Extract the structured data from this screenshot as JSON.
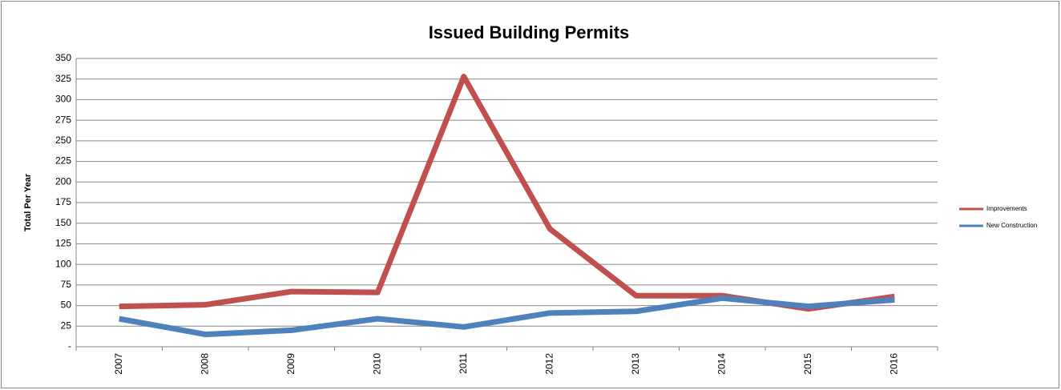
{
  "chart_data": {
    "type": "line",
    "title": "Issued Building Permits",
    "y_label": "Total Per Year",
    "categories": [
      "2007",
      "2008",
      "2009",
      "2010",
      "2011",
      "2012",
      "2013",
      "2014",
      "2015",
      "2016"
    ],
    "series": [
      {
        "name": "Improvements",
        "color": "#c0504d",
        "values": [
          49,
          51,
          67,
          66,
          328,
          143,
          62,
          62,
          46,
          61
        ]
      },
      {
        "name": "New Construction",
        "color": "#4f81bd",
        "values": [
          34,
          15,
          20,
          34,
          24,
          41,
          43,
          59,
          49,
          57
        ]
      }
    ],
    "ylim": [
      0,
      350
    ],
    "yticks": [
      {
        "value": 0,
        "label": "-"
      },
      25,
      50,
      75,
      100,
      125,
      150,
      175,
      200,
      225,
      250,
      275,
      300,
      325,
      350
    ],
    "grid": true,
    "legend": "right"
  }
}
